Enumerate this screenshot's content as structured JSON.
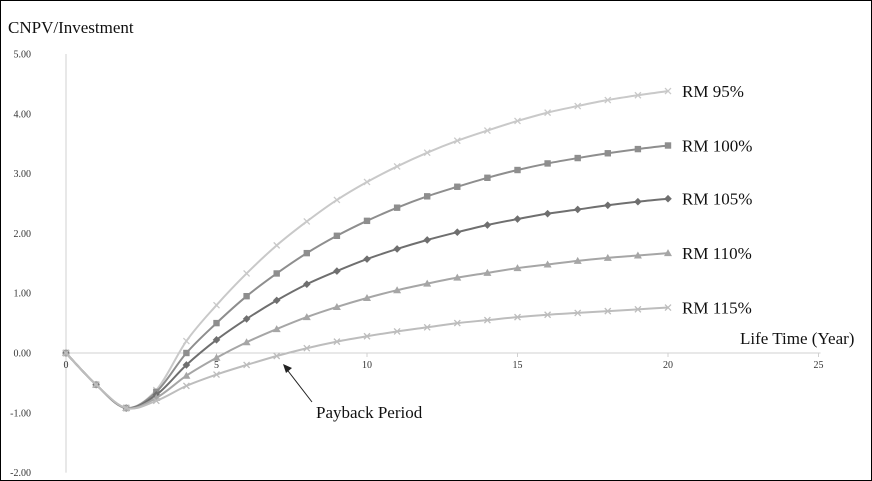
{
  "chart_data": {
    "type": "line",
    "ylabel": "CNPV/Investment",
    "xlabel": "Life Time (Year)",
    "xlim": [
      0,
      25
    ],
    "ylim": [
      -2,
      5
    ],
    "x_ticks": [
      "0",
      "5",
      "10",
      "15",
      "20",
      "25"
    ],
    "y_ticks": [
      "5.00",
      "4.00",
      "3.00",
      "2.00",
      "1.00",
      "0.00",
      "-1.00",
      "-2.00"
    ],
    "grid": false,
    "annotation": "Payback Period",
    "x": [
      0,
      1,
      2,
      3,
      4,
      5,
      6,
      7,
      8,
      9,
      10,
      11,
      12,
      13,
      14,
      15,
      16,
      17,
      18,
      19,
      20
    ],
    "series": [
      {
        "name": "RM 95%",
        "marker": "x",
        "color": "#c9c9c9",
        "values": [
          0,
          -0.53,
          -0.92,
          -0.62,
          0.2,
          0.8,
          1.33,
          1.8,
          2.2,
          2.56,
          2.86,
          3.12,
          3.35,
          3.55,
          3.72,
          3.88,
          4.02,
          4.13,
          4.23,
          4.31,
          4.38
        ]
      },
      {
        "name": "RM 100%",
        "marker": "square",
        "color": "#8e8e8e",
        "values": [
          0,
          -0.53,
          -0.92,
          -0.65,
          0.0,
          0.5,
          0.95,
          1.33,
          1.67,
          1.96,
          2.21,
          2.43,
          2.62,
          2.78,
          2.93,
          3.06,
          3.17,
          3.26,
          3.34,
          3.41,
          3.47
        ]
      },
      {
        "name": "RM 105%",
        "marker": "diamond",
        "color": "#6f6f6f",
        "values": [
          0,
          -0.53,
          -0.92,
          -0.7,
          -0.2,
          0.22,
          0.57,
          0.88,
          1.15,
          1.37,
          1.57,
          1.74,
          1.89,
          2.02,
          2.14,
          2.24,
          2.33,
          2.4,
          2.47,
          2.53,
          2.58
        ]
      },
      {
        "name": "RM 110%",
        "marker": "triangle",
        "color": "#a6a6a6",
        "values": [
          0,
          -0.53,
          -0.92,
          -0.75,
          -0.38,
          -0.08,
          0.18,
          0.4,
          0.6,
          0.77,
          0.92,
          1.05,
          1.16,
          1.26,
          1.34,
          1.42,
          1.48,
          1.54,
          1.59,
          1.63,
          1.67
        ]
      },
      {
        "name": "RM 115%",
        "marker": "x",
        "color": "#bdbdbd",
        "values": [
          0,
          -0.53,
          -0.92,
          -0.8,
          -0.55,
          -0.36,
          -0.2,
          -0.05,
          0.08,
          0.19,
          0.28,
          0.36,
          0.43,
          0.5,
          0.55,
          0.6,
          0.64,
          0.67,
          0.7,
          0.73,
          0.76
        ]
      }
    ]
  }
}
